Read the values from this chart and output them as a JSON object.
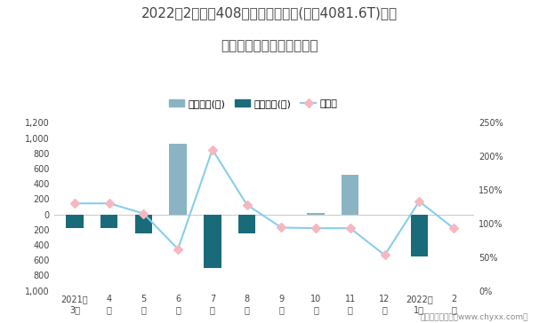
{
  "title_line1": "2022年2月标致408旗下最畅销轿车(标致4081.6T)近一",
  "title_line2": "年库存情况及产销率统计图",
  "categories": [
    "2021年\n3月",
    "4\n月",
    "5\n月",
    "6\n月",
    "7\n月",
    "8\n月",
    "9\n月",
    "10\n月",
    "11\n月",
    "12\n月",
    "2022年\n1月",
    "2\n月"
  ],
  "jiya_values": [
    0,
    0,
    0,
    920,
    0,
    0,
    0,
    20,
    520,
    0,
    0,
    0
  ],
  "qingcang_values": [
    -185,
    -185,
    -250,
    0,
    -700,
    -250,
    0,
    0,
    0,
    0,
    -550,
    0
  ],
  "chanxiaolv": [
    1.3,
    1.3,
    1.15,
    0.62,
    2.1,
    1.28,
    0.94,
    0.93,
    0.93,
    0.53,
    1.33,
    0.93
  ],
  "jiya_color": "#8ab4c4",
  "qingcang_color": "#1a6b7a",
  "line_color": "#87ceeb",
  "marker_facecolor": "#f5b8c0",
  "marker_edgecolor": "#f5b8c0",
  "ylim_left": [
    -1000,
    1200
  ],
  "ylim_right": [
    0.0,
    2.5
  ],
  "yticks_left_vals": [
    -1000,
    -800,
    -600,
    -400,
    -200,
    0,
    200,
    400,
    600,
    800,
    1000,
    1200
  ],
  "yticks_left_labels": [
    "1,000",
    "800",
    "600",
    "400",
    "200",
    "0",
    "200",
    "400",
    "600",
    "800",
    "1,000",
    "1,200"
  ],
  "yticks_right_vals": [
    0.0,
    0.5,
    1.0,
    1.5,
    2.0,
    2.5
  ],
  "yticks_right_labels": [
    "0%",
    "50%",
    "100%",
    "150%",
    "200%",
    "250%"
  ],
  "footer": "制图：智研咨询（www.chyxx.com）",
  "legend_labels": [
    "积压库存(辆)",
    "清仓库存(辆)",
    "产销率"
  ],
  "bg_color": "#ffffff",
  "text_color": "#444444",
  "grid_color": "#cccccc",
  "title_fontsize": 11,
  "tick_fontsize": 7,
  "legend_fontsize": 8,
  "footer_fontsize": 6.5,
  "bar_width": 0.5,
  "line_width": 1.5,
  "marker_size": 5
}
